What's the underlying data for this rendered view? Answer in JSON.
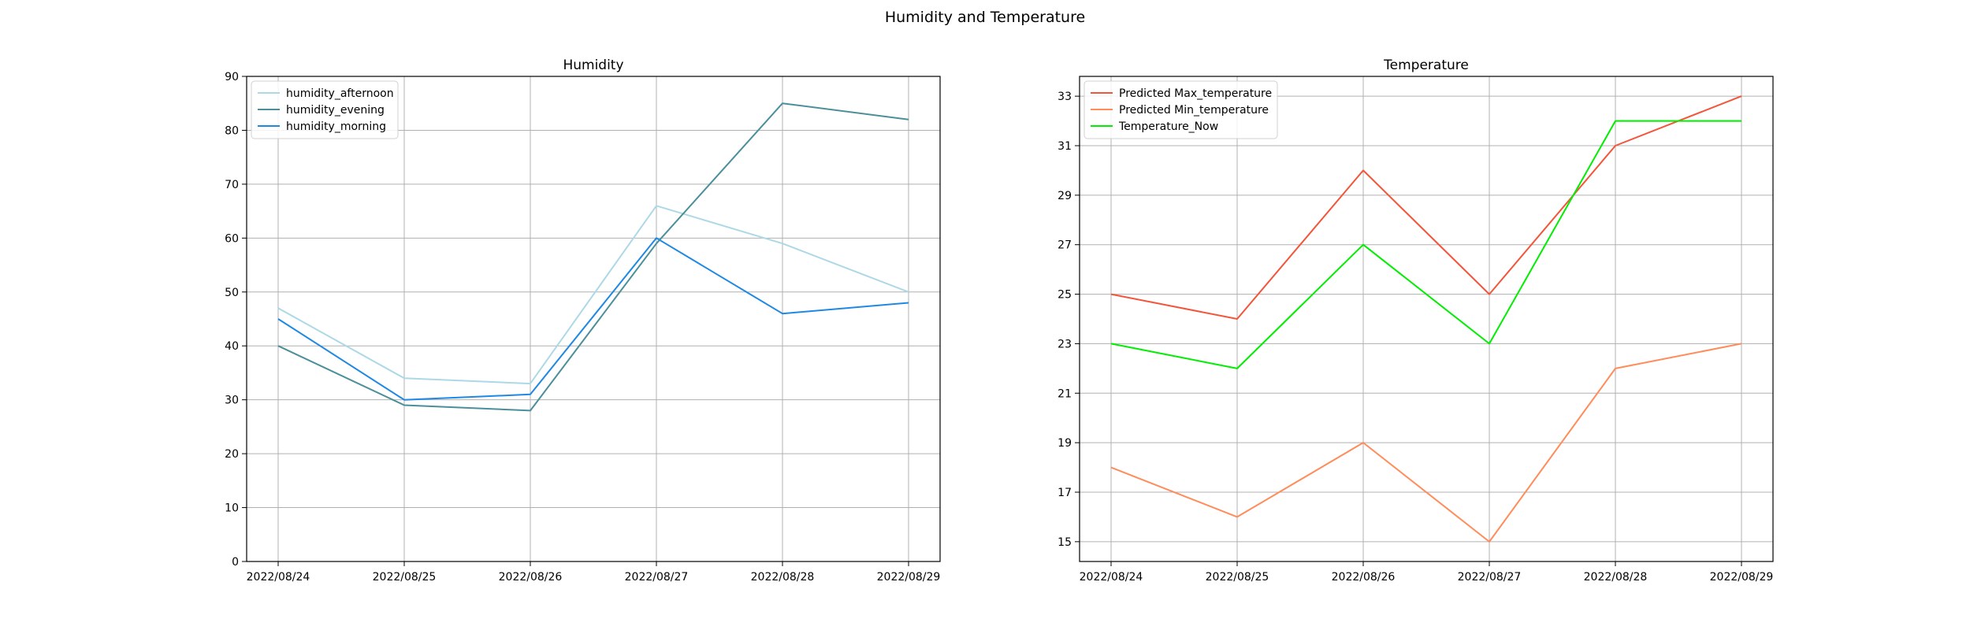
{
  "figure": {
    "title": "Humidity and Temperature"
  },
  "chart_data": [
    {
      "type": "line",
      "title": "Humidity",
      "xlabel": "",
      "ylabel": "",
      "x": [
        "2022/08/24",
        "2022/08/25",
        "2022/08/26",
        "2022/08/27",
        "2022/08/28",
        "2022/08/29"
      ],
      "ylim": [
        0,
        90
      ],
      "yticks": [
        0,
        10,
        20,
        30,
        40,
        50,
        60,
        70,
        80,
        90
      ],
      "grid": true,
      "legend": "top-left",
      "series": [
        {
          "name": "humidity_afternoon",
          "color": "#add8e6",
          "values": [
            47,
            34,
            33,
            66,
            59,
            50
          ]
        },
        {
          "name": "humidity_evening",
          "color": "#4a8f9a",
          "values": [
            40,
            29,
            28,
            59,
            85,
            82
          ]
        },
        {
          "name": "humidity_morning",
          "color": "#1e88e5",
          "values": [
            45,
            30,
            31,
            60,
            46,
            48
          ]
        }
      ]
    },
    {
      "type": "line",
      "title": "Temperature",
      "xlabel": "",
      "ylabel": "",
      "x": [
        "2022/08/24",
        "2022/08/25",
        "2022/08/26",
        "2022/08/27",
        "2022/08/28",
        "2022/08/29"
      ],
      "ylim": [
        14.2,
        33.8
      ],
      "yticks": [
        15,
        17,
        19,
        21,
        23,
        25,
        27,
        29,
        31,
        33
      ],
      "grid": true,
      "legend": "top-left",
      "series": [
        {
          "name": "Predicted Max_temperature",
          "color": "#f4553a",
          "values": [
            25,
            24,
            30,
            25,
            31,
            33
          ]
        },
        {
          "name": "Predicted Min_temperature",
          "color": "#ff8c5a",
          "values": [
            18,
            16,
            19,
            15,
            22,
            23
          ]
        },
        {
          "name": "Temperature_Now",
          "color": "#00ee00",
          "values": [
            23,
            22,
            27,
            23,
            32,
            32
          ]
        }
      ]
    }
  ]
}
